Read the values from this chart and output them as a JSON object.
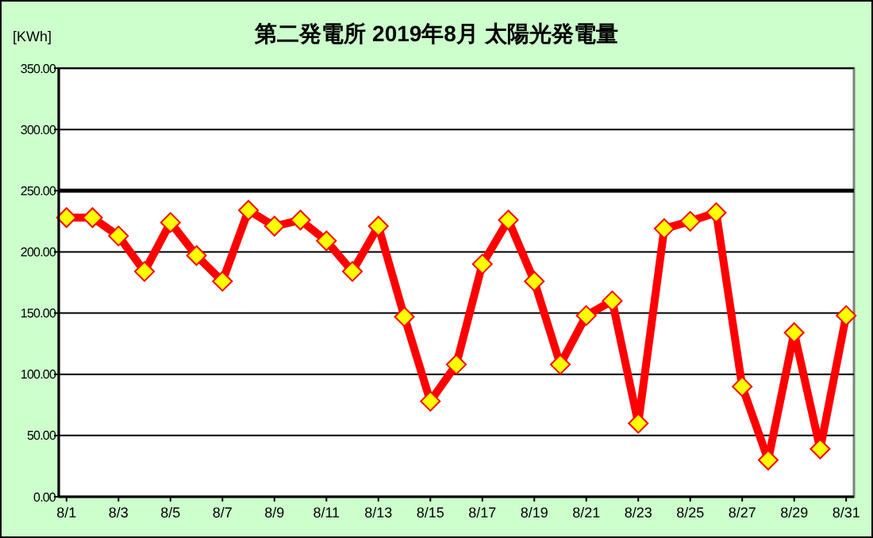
{
  "chart_data": {
    "type": "line",
    "title": "第二発電所  2019年8月 太陽光発電量",
    "ylabel": "[KWh]",
    "categories": [
      "8/1",
      null,
      "8/3",
      null,
      "8/5",
      null,
      "8/7",
      null,
      "8/9",
      null,
      "8/11",
      null,
      "8/13",
      null,
      "8/15",
      null,
      "8/17",
      null,
      "8/19",
      null,
      "8/21",
      null,
      "8/23",
      null,
      "8/25",
      null,
      "8/27",
      null,
      "8/29",
      null,
      "8/31"
    ],
    "series": [
      {
        "color": "#ff0000",
        "values": [
          228,
          228,
          213,
          184,
          224,
          197,
          176,
          234,
          221,
          226,
          209,
          184,
          221,
          147,
          78,
          108,
          190,
          226,
          176,
          108,
          148,
          160,
          60,
          219,
          225,
          232,
          90,
          30,
          134,
          39,
          148
        ]
      }
    ],
    "ylim": [
      0,
      350
    ],
    "yticks": [
      {
        "value": 0,
        "label": "0.00"
      },
      {
        "value": 50,
        "label": "50.00"
      },
      {
        "value": 100,
        "label": "100.00"
      },
      {
        "value": 150,
        "label": "150.00"
      },
      {
        "value": 200,
        "label": "200.00"
      },
      {
        "value": 250,
        "label": "250.00"
      },
      {
        "value": 300,
        "label": "300.00"
      },
      {
        "value": 350,
        "label": "350.00"
      }
    ],
    "ref_lines": [
      {
        "axis": "y",
        "value": 250,
        "color": "#000000"
      }
    ],
    "grid": "y",
    "marker": "diamond",
    "line_style": "solid"
  }
}
